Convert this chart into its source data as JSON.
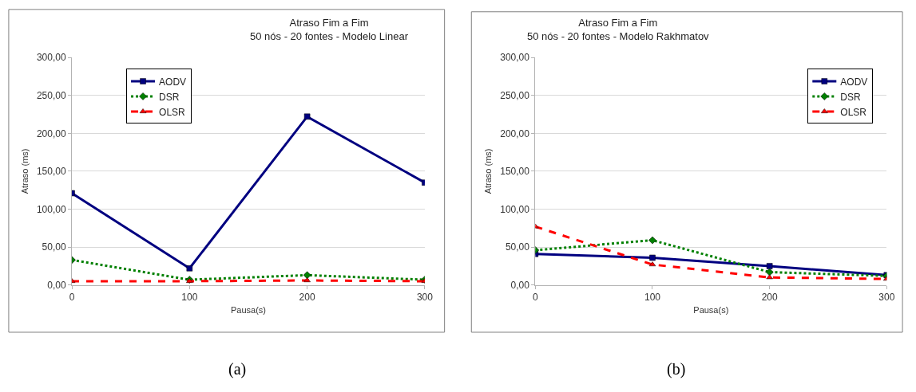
{
  "chart_data": [
    {
      "type": "line",
      "title": "Atraso Fim a Fim\n50 nós - 20 fontes - Modelo Linear",
      "xlabel": "Pausa(s)",
      "ylabel": "Atraso (ms)",
      "x": [
        0,
        100,
        200,
        300
      ],
      "xlim": [
        0,
        300
      ],
      "xticks": [
        0,
        100,
        200,
        300
      ],
      "ylim": [
        0,
        300
      ],
      "yticks": [
        {
          "value": 0,
          "label": "0,00"
        },
        {
          "value": 50,
          "label": "50,00"
        },
        {
          "value": 100,
          "label": "100,00"
        },
        {
          "value": 150,
          "label": "150,00"
        },
        {
          "value": 200,
          "label": "200,00"
        },
        {
          "value": 250,
          "label": "250,00"
        },
        {
          "value": 300,
          "label": "300,00"
        }
      ],
      "grid": "y",
      "legend": "top left",
      "annotations": [
        "(a)"
      ],
      "series": [
        {
          "name": "AODV",
          "color": "#000080",
          "marker": "square",
          "line_style": "solid",
          "values": [
            121,
            22,
            222,
            135
          ]
        },
        {
          "name": "DSR",
          "color": "#008000",
          "marker": "diamond",
          "line_style": "dotted",
          "values": [
            33,
            7,
            13,
            7
          ]
        },
        {
          "name": "OLSR",
          "color": "#ff0000",
          "marker": "triangle",
          "line_style": "dashed",
          "values": [
            5,
            5,
            6,
            5
          ]
        }
      ]
    },
    {
      "type": "line",
      "title": "Atraso Fim a Fim\n50 nós - 20 fontes - Modelo Rakhmatov",
      "xlabel": "Pausa(s)",
      "ylabel": "Atraso (ms)",
      "x": [
        0,
        100,
        200,
        300
      ],
      "xlim": [
        0,
        300
      ],
      "xticks": [
        0,
        100,
        200,
        300
      ],
      "ylim": [
        0,
        300
      ],
      "yticks": [
        {
          "value": 0,
          "label": "0,00"
        },
        {
          "value": 50,
          "label": "50,00"
        },
        {
          "value": 100,
          "label": "100,00"
        },
        {
          "value": 150,
          "label": "150,00"
        },
        {
          "value": 200,
          "label": "200,00"
        },
        {
          "value": 250,
          "label": "250,00"
        },
        {
          "value": 300,
          "label": "300,00"
        }
      ],
      "grid": "y",
      "legend": "top right",
      "annotations": [
        "(b)"
      ],
      "series": [
        {
          "name": "AODV",
          "color": "#000080",
          "marker": "square",
          "line_style": "solid",
          "values": [
            41,
            36,
            25,
            13
          ]
        },
        {
          "name": "DSR",
          "color": "#008000",
          "marker": "diamond",
          "line_style": "dotted",
          "values": [
            46,
            59,
            17,
            12
          ]
        },
        {
          "name": "OLSR",
          "color": "#ff0000",
          "marker": "triangle",
          "line_style": "dashed",
          "values": [
            77,
            27,
            10,
            8
          ]
        }
      ]
    }
  ]
}
